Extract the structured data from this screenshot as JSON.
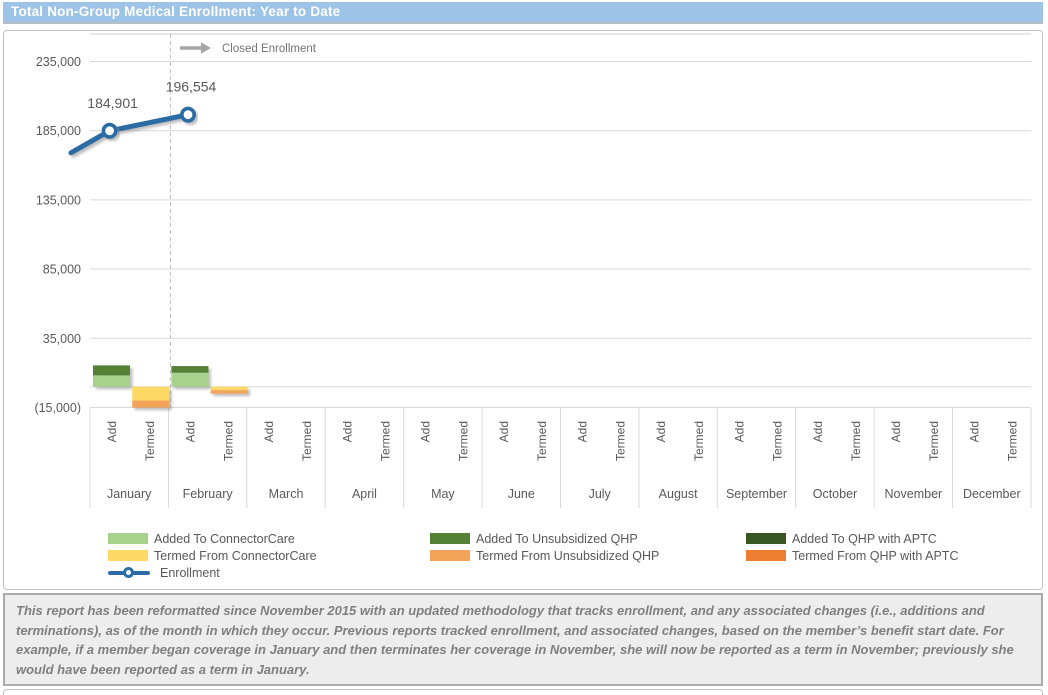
{
  "header": {
    "title": "Total Non-Group Medical Enrollment: Year to Date"
  },
  "colors": {
    "header_bg": "#9DC3E6",
    "enrollment_line": "#2B6CA3",
    "added_connectorcare": "#A9D18E",
    "added_unsubsidized_qhp": "#538135",
    "added_qhp_aptc": "#375623",
    "termed_connectorcare": "#FFD966",
    "termed_unsubsidized_qhp": "#F4A459",
    "termed_qhp_aptc": "#ED7D31",
    "gridline": "#D9D9D9",
    "axis_text": "#595959",
    "annotation": "#A6A6A6"
  },
  "chart_data": {
    "type": "bar",
    "title": "Total Non-Group Medical Enrollment: Year to Date",
    "months": [
      "January",
      "February",
      "March",
      "April",
      "May",
      "June",
      "July",
      "August",
      "September",
      "October",
      "November",
      "December"
    ],
    "category_sublabels": [
      "Add",
      "Termed"
    ],
    "y_axis": {
      "min": -15000,
      "tick_step": 50000,
      "ticks": [
        {
          "value": -15000,
          "label": "(15,000)"
        },
        {
          "value": 35000,
          "label": "35,000"
        },
        {
          "value": 85000,
          "label": "85,000"
        },
        {
          "value": 135000,
          "label": "135,000"
        },
        {
          "value": 185000,
          "label": "185,000"
        },
        {
          "value": 235000,
          "label": "235,000"
        }
      ]
    },
    "bar_series": [
      {
        "name": "Added To ConnectorCare",
        "stack": "add",
        "color": "#A9D18E",
        "values": [
          8200,
          10100,
          null,
          null,
          null,
          null,
          null,
          null,
          null,
          null,
          null,
          null
        ]
      },
      {
        "name": "Added To Unsubsidized QHP",
        "stack": "add",
        "color": "#538135",
        "values": [
          7200,
          4800,
          null,
          null,
          null,
          null,
          null,
          null,
          null,
          null,
          null,
          null
        ]
      },
      {
        "name": "Added To QHP with APTC",
        "stack": "add",
        "color": "#375623",
        "values": [
          0,
          0,
          null,
          null,
          null,
          null,
          null,
          null,
          null,
          null,
          null,
          null
        ]
      },
      {
        "name": "Termed From ConnectorCare",
        "stack": "termed",
        "color": "#FFD966",
        "values": [
          10000,
          2500,
          null,
          null,
          null,
          null,
          null,
          null,
          null,
          null,
          null,
          null
        ]
      },
      {
        "name": "Termed From Unsubsidized QHP",
        "stack": "termed",
        "color": "#F4A459",
        "values": [
          5100,
          2500,
          null,
          null,
          null,
          null,
          null,
          null,
          null,
          null,
          null,
          null
        ]
      },
      {
        "name": "Termed From QHP with APTC",
        "stack": "termed",
        "color": "#ED7D31",
        "values": [
          0,
          0,
          null,
          null,
          null,
          null,
          null,
          null,
          null,
          null,
          null,
          null
        ]
      }
    ],
    "line_series": {
      "name": "Enrollment",
      "color": "#2B6CA3",
      "values": [
        184901,
        196554,
        null,
        null,
        null,
        null,
        null,
        null,
        null,
        null,
        null,
        null
      ],
      "data_labels": [
        "184,901",
        "196,554",
        "",
        "",
        "",
        "",
        "",
        "",
        "",
        "",
        "",
        ""
      ],
      "entry_value_at_left_edge": 169000
    },
    "annotation": {
      "label": "Closed Enrollment",
      "divider_after_month": 1
    },
    "legend_position": "bottom",
    "grid": true
  },
  "legend": {
    "columns": [
      [
        {
          "swatch_type": "box",
          "swatch_color": "#A9D18E",
          "label": "Added To ConnectorCare"
        },
        {
          "swatch_type": "box",
          "swatch_color": "#FFD966",
          "label": "Termed From ConnectorCare"
        },
        {
          "swatch_type": "line",
          "swatch_color": "#2B6CA3",
          "label": "Enrollment"
        }
      ],
      [
        {
          "swatch_type": "box",
          "swatch_color": "#538135",
          "label": "Added To Unsubsidized QHP"
        },
        {
          "swatch_type": "box",
          "swatch_color": "#F4A459",
          "label": "Termed From Unsubsidized QHP"
        }
      ],
      [
        {
          "swatch_type": "box",
          "swatch_color": "#375623",
          "label": "Added To QHP with APTC"
        },
        {
          "swatch_type": "box",
          "swatch_color": "#ED7D31",
          "label": "Termed From QHP with APTC"
        }
      ]
    ]
  },
  "footnote": {
    "text": "This report has been reformatted since November 2015 with an updated methodology that tracks enrollment, and any associated changes (i.e., additions and terminations), as of the month in which they occur.  Previous reports tracked enrollment, and associated changes, based on the member’s benefit start date.  For example, if a member began coverage in January and then terminates her coverage in November, she will now be reported as a term in November; previously she would have been reported as a term in January."
  }
}
